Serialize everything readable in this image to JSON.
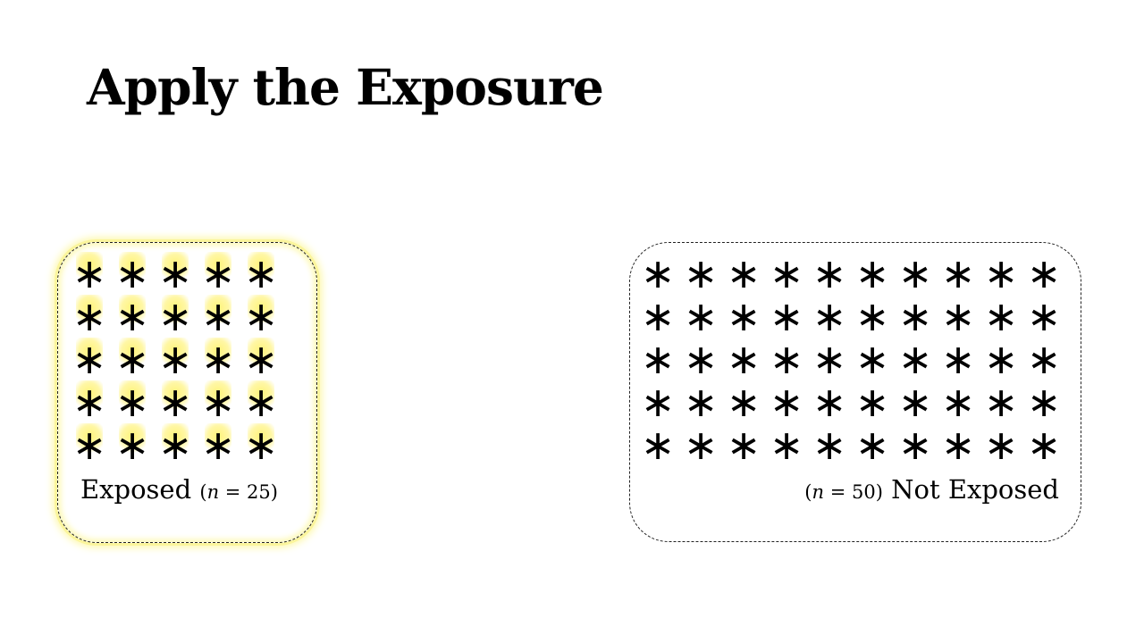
{
  "title": "Apply the Exposure",
  "groups": {
    "exposed": {
      "label": "Exposed",
      "n_open": "(",
      "n_var": "n",
      "n_eq": " = 25)",
      "n": 25,
      "rows": 5,
      "cols": 5,
      "highlight_color": "#fff37a"
    },
    "not_exposed": {
      "label": "Not Exposed",
      "n_open": "(",
      "n_var": "n",
      "n_eq": " = 50)",
      "n": 50,
      "rows": 5,
      "cols": 10
    }
  },
  "star_glyph": "∗"
}
